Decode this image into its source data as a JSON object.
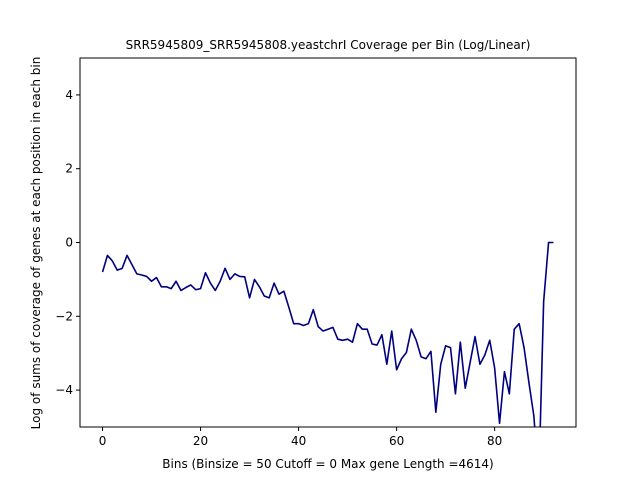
{
  "chart_data": {
    "type": "line",
    "title": "SRR5945809_SRR5945808.yeastchrI Coverage per Bin (Log/Linear)",
    "xlabel": "Bins  (Binsize = 50 Cutoff = 0 Max gene Length =4614)",
    "ylabel": "Log of sums of coverage of genes at each position in each bin",
    "xlim": [
      -4.6,
      96.6
    ],
    "ylim": [
      -5,
      5
    ],
    "xticks": [
      0,
      20,
      40,
      60,
      80
    ],
    "yticks": [
      -4,
      -2,
      0,
      2,
      4
    ],
    "grid": false,
    "series": [
      {
        "color": "#00007f",
        "x": [
          0,
          1,
          2,
          3,
          4,
          5,
          6,
          7,
          8,
          9,
          10,
          11,
          12,
          13,
          14,
          15,
          16,
          17,
          18,
          19,
          20,
          21,
          22,
          23,
          24,
          25,
          26,
          27,
          28,
          29,
          30,
          31,
          32,
          33,
          34,
          35,
          36,
          37,
          38,
          39,
          40,
          41,
          42,
          43,
          44,
          45,
          46,
          47,
          48,
          49,
          50,
          51,
          52,
          53,
          54,
          55,
          56,
          57,
          58,
          59,
          60,
          61,
          62,
          63,
          64,
          65,
          66,
          67,
          68,
          69,
          70,
          71,
          72,
          73,
          74,
          75,
          76,
          77,
          78,
          79,
          80,
          81,
          82,
          83,
          84,
          85,
          86,
          87,
          88,
          89,
          90,
          91,
          92
        ],
        "y": [
          -0.8,
          -0.35,
          -0.5,
          -0.75,
          -0.7,
          -0.35,
          -0.6,
          -0.85,
          -0.88,
          -0.92,
          -1.05,
          -0.95,
          -1.2,
          -1.2,
          -1.25,
          -1.05,
          -1.3,
          -1.22,
          -1.15,
          -1.28,
          -1.25,
          -0.82,
          -1.1,
          -1.3,
          -1.05,
          -0.7,
          -1.0,
          -0.85,
          -0.92,
          -0.93,
          -1.5,
          -1.0,
          -1.2,
          -1.45,
          -1.5,
          -1.1,
          -1.4,
          -1.32,
          -1.75,
          -2.2,
          -2.2,
          -2.25,
          -2.2,
          -1.82,
          -2.28,
          -2.4,
          -2.35,
          -2.3,
          -2.62,
          -2.65,
          -2.62,
          -2.7,
          -2.2,
          -2.35,
          -2.35,
          -2.75,
          -2.78,
          -2.5,
          -3.3,
          -2.4,
          -3.45,
          -3.15,
          -2.98,
          -2.35,
          -2.65,
          -3.1,
          -3.15,
          -2.95,
          -4.6,
          -3.3,
          -2.8,
          -2.85,
          -4.1,
          -2.7,
          -3.95,
          -3.25,
          -2.55,
          -3.3,
          -3.05,
          -2.65,
          -3.4,
          -4.9,
          -3.5,
          -4.1,
          -2.35,
          -2.2,
          -2.85,
          -3.8,
          -4.7,
          -6.5,
          -1.6,
          0.0,
          0.0
        ]
      }
    ]
  }
}
